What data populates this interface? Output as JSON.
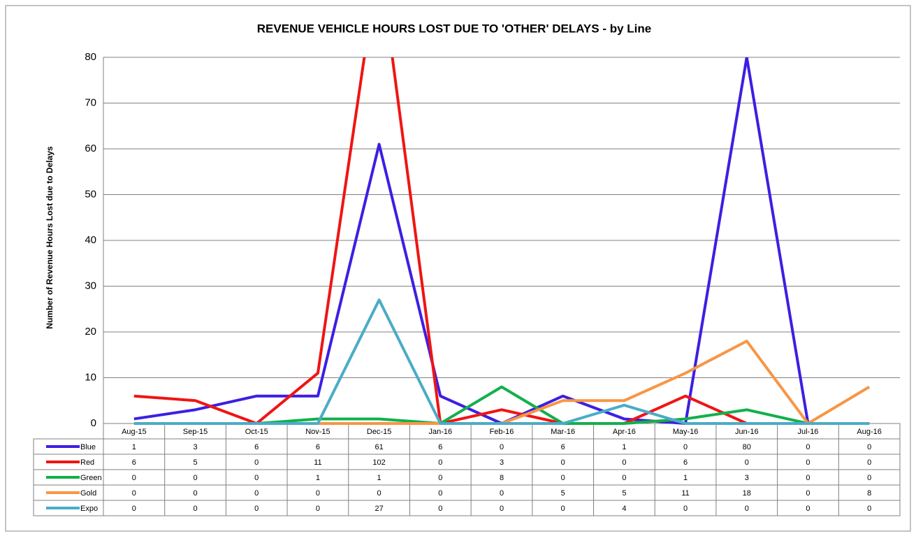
{
  "chart_data": {
    "type": "line",
    "title": "REVENUE VEHICLE HOURS LOST DUE TO 'OTHER' DELAYS - by Line",
    "y_label": "Number of Revenue Hours Lost due to Delays",
    "categories": [
      "Aug-15",
      "Sep-15",
      "Oct-15",
      "Nov-15",
      "Dec-15",
      "Jan-16",
      "Feb-16",
      "Mar-16",
      "Apr-16",
      "May-16",
      "Jun-16",
      "Jul-16",
      "Aug-16"
    ],
    "series": [
      {
        "name": "Blue",
        "color": "#3c1fe3",
        "values": [
          1,
          3,
          6,
          6,
          61,
          6,
          0,
          6,
          1,
          0,
          80,
          0,
          0
        ]
      },
      {
        "name": "Red",
        "color": "#f01414",
        "values": [
          6,
          5,
          0,
          11,
          102,
          0,
          3,
          0,
          0,
          6,
          0,
          0,
          0
        ]
      },
      {
        "name": "Green",
        "color": "#12b04c",
        "values": [
          0,
          0,
          0,
          1,
          1,
          0,
          8,
          0,
          0,
          1,
          3,
          0,
          0
        ]
      },
      {
        "name": "Gold",
        "color": "#f79646",
        "values": [
          0,
          0,
          0,
          0,
          0,
          0,
          0,
          5,
          5,
          11,
          18,
          0,
          8
        ]
      },
      {
        "name": "Expo",
        "color": "#4bacc6",
        "values": [
          0,
          0,
          0,
          0,
          27,
          0,
          0,
          0,
          4,
          0,
          0,
          0,
          0
        ]
      }
    ],
    "ylim": [
      0,
      80
    ],
    "yticks": [
      0,
      10,
      20,
      30,
      40,
      50,
      60,
      70,
      80
    ],
    "grid": true,
    "data_table": true
  }
}
